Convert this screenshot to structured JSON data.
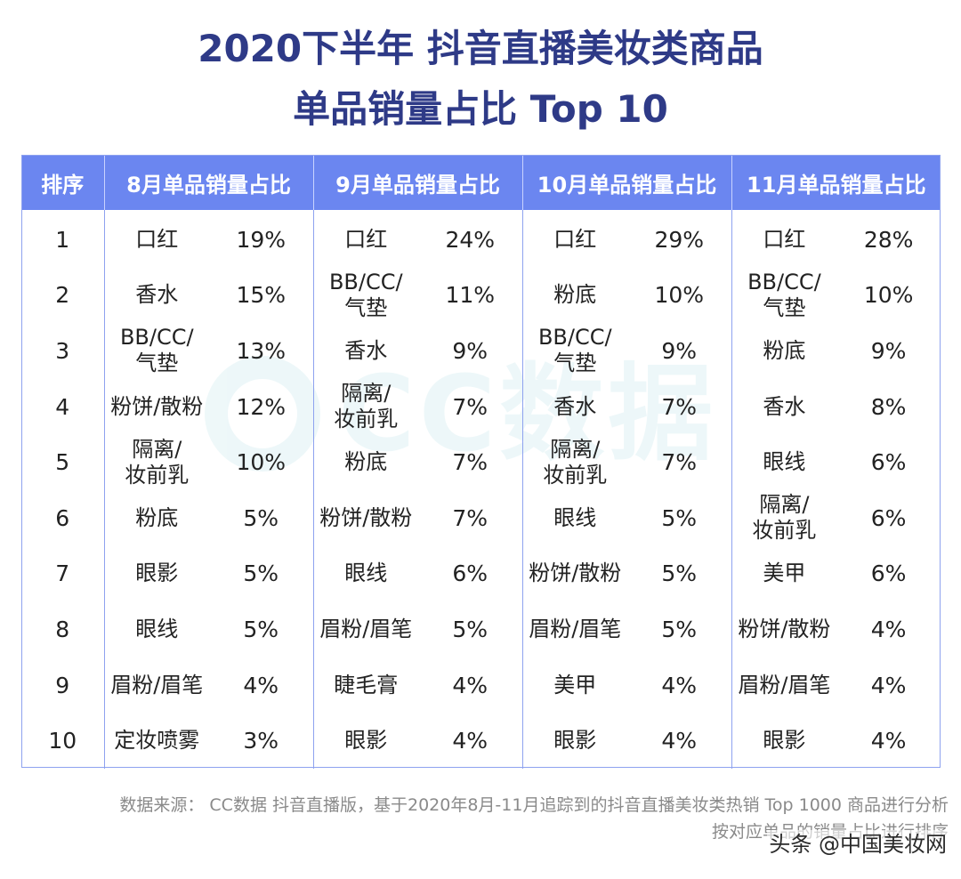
{
  "title_line1": "2020下半年 抖音直播美妆类商品",
  "title_line2": "单品销量占比 Top 10",
  "watermark": {
    "text": "CC数据",
    "color": "#27a8b8"
  },
  "chart_data": {
    "type": "table",
    "title": "2020下半年 抖音直播美妆类商品 单品销量占比 Top 10",
    "columns": [
      "排序",
      "8月单品销量占比",
      "9月单品销量占比",
      "10月单品销量占比",
      "11月单品销量占比"
    ],
    "rows": [
      {
        "rank": "1",
        "cells": [
          {
            "name": "口红",
            "pct": "19%"
          },
          {
            "name": "口红",
            "pct": "24%"
          },
          {
            "name": "口红",
            "pct": "29%"
          },
          {
            "name": "口红",
            "pct": "28%"
          }
        ]
      },
      {
        "rank": "2",
        "cells": [
          {
            "name": "香水",
            "pct": "15%"
          },
          {
            "name": "BB/CC/\n气垫",
            "pct": "11%"
          },
          {
            "name": "粉底",
            "pct": "10%"
          },
          {
            "name": "BB/CC/\n气垫",
            "pct": "10%"
          }
        ]
      },
      {
        "rank": "3",
        "cells": [
          {
            "name": "BB/CC/\n气垫",
            "pct": "13%"
          },
          {
            "name": "香水",
            "pct": "9%"
          },
          {
            "name": "BB/CC/\n气垫",
            "pct": "9%"
          },
          {
            "name": "粉底",
            "pct": "9%"
          }
        ]
      },
      {
        "rank": "4",
        "cells": [
          {
            "name": "粉饼/散粉",
            "pct": "12%"
          },
          {
            "name": "隔离/\n妆前乳",
            "pct": "7%"
          },
          {
            "name": "香水",
            "pct": "7%"
          },
          {
            "name": "香水",
            "pct": "8%"
          }
        ]
      },
      {
        "rank": "5",
        "cells": [
          {
            "name": "隔离/\n妆前乳",
            "pct": "10%"
          },
          {
            "name": "粉底",
            "pct": "7%"
          },
          {
            "name": "隔离/\n妆前乳",
            "pct": "7%"
          },
          {
            "name": "眼线",
            "pct": "6%"
          }
        ]
      },
      {
        "rank": "6",
        "cells": [
          {
            "name": "粉底",
            "pct": "5%"
          },
          {
            "name": "粉饼/散粉",
            "pct": "7%"
          },
          {
            "name": "眼线",
            "pct": "5%"
          },
          {
            "name": "隔离/\n妆前乳",
            "pct": "6%"
          }
        ]
      },
      {
        "rank": "7",
        "cells": [
          {
            "name": "眼影",
            "pct": "5%"
          },
          {
            "name": "眼线",
            "pct": "6%"
          },
          {
            "name": "粉饼/散粉",
            "pct": "5%"
          },
          {
            "name": "美甲",
            "pct": "6%"
          }
        ]
      },
      {
        "rank": "8",
        "cells": [
          {
            "name": "眼线",
            "pct": "5%"
          },
          {
            "name": "眉粉/眉笔",
            "pct": "5%"
          },
          {
            "name": "眉粉/眉笔",
            "pct": "5%"
          },
          {
            "name": "粉饼/散粉",
            "pct": "4%"
          }
        ]
      },
      {
        "rank": "9",
        "cells": [
          {
            "name": "眉粉/眉笔",
            "pct": "4%"
          },
          {
            "name": "睫毛膏",
            "pct": "4%"
          },
          {
            "name": "美甲",
            "pct": "4%"
          },
          {
            "name": "眉粉/眉笔",
            "pct": "4%"
          }
        ]
      },
      {
        "rank": "10",
        "cells": [
          {
            "name": "定妆喷雾",
            "pct": "3%"
          },
          {
            "name": "眼影",
            "pct": "4%"
          },
          {
            "name": "眼影",
            "pct": "4%"
          },
          {
            "name": "眼影",
            "pct": "4%"
          }
        ]
      }
    ]
  },
  "colors": {
    "title": "#2e3a87",
    "header_bg": "#6b86f0",
    "border": "#8ea2ef"
  },
  "source_line1": "数据来源： CC数据 抖音直播版，基于2020年8月-11月追踪到的抖音直播美妆类热销 Top 1000 商品进行分析",
  "source_line2": "按对应单品的销量占比进行排序",
  "credit": "头条 @中国美妆网"
}
